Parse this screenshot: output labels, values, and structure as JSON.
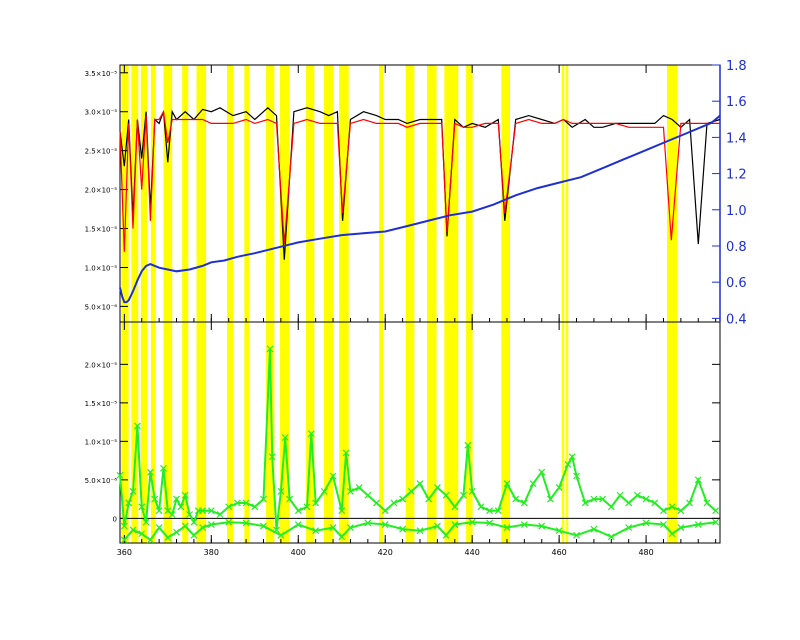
{
  "colors": {
    "background": "#ffffff",
    "band": "#ffff00",
    "observed": "#000000",
    "model": "#ff0000",
    "ratio": "#1f2fd0",
    "residual": "#22ee22",
    "right_axis": "#1f2fd0",
    "axis": "#000000"
  },
  "chart_data": [
    {
      "type": "line",
      "panel": "top",
      "title": "",
      "xlabel": "",
      "ylabel_left": "",
      "ylabel_right": "",
      "xlim": [
        359,
        497
      ],
      "ylim_left": [
        3e-06,
        3.6e-05
      ],
      "ylim_right": [
        0.38,
        1.8
      ],
      "y_ticks_left": [
        {
          "value": 5e-06,
          "label": "5.0×10⁻⁶"
        },
        {
          "value": 1e-05,
          "label": "1.0×10⁻⁵"
        },
        {
          "value": 1.5e-05,
          "label": "1.5×10⁻⁵"
        },
        {
          "value": 2e-05,
          "label": "2.0×10⁻⁵"
        },
        {
          "value": 2.5e-05,
          "label": "2.5×10⁻⁵"
        },
        {
          "value": 3e-05,
          "label": "3.0×10⁻⁵"
        },
        {
          "value": 3.5e-05,
          "label": "3.5×10⁻⁵"
        }
      ],
      "y_ticks_right": [
        {
          "value": 0.4,
          "label": "0.4"
        },
        {
          "value": 0.6,
          "label": "0.6"
        },
        {
          "value": 0.8,
          "label": "0.8"
        },
        {
          "value": 1.0,
          "label": "1.0"
        },
        {
          "value": 1.2,
          "label": "1.2"
        },
        {
          "value": 1.4,
          "label": "1.4"
        },
        {
          "value": 1.6,
          "label": "1.6"
        },
        {
          "value": 1.8,
          "label": "1.8"
        }
      ],
      "highlight_bands": [
        [
          359.3,
          361.0
        ],
        [
          361.6,
          363.2
        ],
        [
          363.8,
          365.2
        ],
        [
          366.1,
          367.2
        ],
        [
          369.0,
          371.0
        ],
        [
          373.3,
          374.7
        ],
        [
          376.6,
          378.8
        ],
        [
          383.6,
          385.0
        ],
        [
          387.6,
          388.7
        ],
        [
          392.6,
          394.5
        ],
        [
          395.8,
          398.0
        ],
        [
          401.8,
          403.7
        ],
        [
          405.9,
          408.1
        ],
        [
          409.4,
          411.6
        ],
        [
          418.6,
          419.6
        ],
        [
          424.7,
          426.7
        ],
        [
          429.6,
          431.8
        ],
        [
          433.6,
          436.8
        ],
        [
          438.6,
          440.1
        ],
        [
          446.7,
          448.7
        ],
        [
          460.6,
          461.2
        ],
        [
          461.6,
          462.1
        ],
        [
          484.8,
          487.2
        ]
      ],
      "series": [
        {
          "key": "observed",
          "x": [
            359,
            360,
            361,
            362,
            363,
            364,
            365,
            366,
            367,
            368,
            369,
            370,
            371,
            372,
            374,
            376,
            378,
            380,
            382,
            385,
            388,
            390,
            393,
            395,
            396.8,
            399,
            402,
            405,
            407,
            409,
            410.2,
            412,
            415,
            418,
            420,
            423,
            425,
            428,
            430,
            433,
            434.2,
            436,
            438,
            440,
            443,
            446,
            447.5,
            450,
            453,
            456,
            459,
            461,
            463,
            466,
            468,
            470,
            473,
            476,
            479,
            482,
            484,
            486,
            488,
            490,
            492,
            494,
            497
          ],
          "y": [
            2.75e-05,
            2.3e-05,
            2.9e-05,
            1.65e-05,
            2.9e-05,
            2.4e-05,
            3e-05,
            1.75e-05,
            2.9e-05,
            2.85e-05,
            3e-05,
            2.35e-05,
            3e-05,
            2.9e-05,
            3e-05,
            2.9e-05,
            3.03e-05,
            3e-05,
            3.05e-05,
            2.95e-05,
            3e-05,
            2.9e-05,
            3.05e-05,
            2.95e-05,
            1.1e-05,
            3e-05,
            3.05e-05,
            3e-05,
            2.95e-05,
            3e-05,
            1.6e-05,
            2.9e-05,
            3e-05,
            2.95e-05,
            2.9e-05,
            2.9e-05,
            2.85e-05,
            2.9e-05,
            2.9e-05,
            2.9e-05,
            1.4e-05,
            2.9e-05,
            2.8e-05,
            2.85e-05,
            2.8e-05,
            2.9e-05,
            1.6e-05,
            2.9e-05,
            2.95e-05,
            2.9e-05,
            2.85e-05,
            2.9e-05,
            2.8e-05,
            2.9e-05,
            2.8e-05,
            2.8e-05,
            2.85e-05,
            2.85e-05,
            2.85e-05,
            2.85e-05,
            2.95e-05,
            2.9e-05,
            2.8e-05,
            2.9e-05,
            1.3e-05,
            2.85e-05,
            2.9e-05
          ]
        },
        {
          "key": "model",
          "x": [
            359,
            360,
            361,
            362,
            363,
            364,
            365,
            366,
            367,
            368,
            369,
            370,
            371,
            372,
            374,
            376,
            378,
            380,
            382,
            385,
            388,
            390,
            393,
            395,
            396.8,
            399,
            402,
            405,
            407,
            409,
            410.2,
            412,
            415,
            418,
            420,
            423,
            425,
            428,
            430,
            433,
            434.2,
            436,
            438,
            440,
            443,
            446,
            447.5,
            450,
            453,
            456,
            459,
            461,
            463,
            466,
            468,
            470,
            473,
            476,
            479,
            482,
            484,
            485.8,
            488,
            490,
            492,
            494,
            497
          ],
          "y": [
            2.75e-05,
            1.2e-05,
            2.85e-05,
            1.5e-05,
            2.9e-05,
            2e-05,
            2.95e-05,
            1.6e-05,
            2.9e-05,
            2.9e-05,
            3e-05,
            2.6e-05,
            2.9e-05,
            2.9e-05,
            2.9e-05,
            2.9e-05,
            2.9e-05,
            2.85e-05,
            2.85e-05,
            2.85e-05,
            2.9e-05,
            2.85e-05,
            2.9e-05,
            2.85e-05,
            1.3e-05,
            2.85e-05,
            2.9e-05,
            2.85e-05,
            2.85e-05,
            2.85e-05,
            1.7e-05,
            2.85e-05,
            2.9e-05,
            2.85e-05,
            2.85e-05,
            2.85e-05,
            2.8e-05,
            2.85e-05,
            2.85e-05,
            2.85e-05,
            1.45e-05,
            2.85e-05,
            2.8e-05,
            2.8e-05,
            2.85e-05,
            2.85e-05,
            1.7e-05,
            2.85e-05,
            2.9e-05,
            2.85e-05,
            2.85e-05,
            2.9e-05,
            2.85e-05,
            2.85e-05,
            2.85e-05,
            2.85e-05,
            2.85e-05,
            2.8e-05,
            2.8e-05,
            2.8e-05,
            2.8e-05,
            1.35e-05,
            2.85e-05,
            2.85e-05,
            2.85e-05,
            2.85e-05,
            2.85e-05
          ]
        },
        {
          "key": "ratio",
          "axis": "right",
          "x": [
            359,
            359.5,
            360,
            360.5,
            361,
            362,
            363,
            364,
            365,
            366,
            367,
            368,
            370,
            372,
            375,
            378,
            380,
            383,
            386,
            390,
            395,
            400,
            405,
            410,
            415,
            420,
            425,
            430,
            435,
            440,
            445,
            450,
            455,
            460,
            465,
            470,
            475,
            480,
            485,
            490,
            495,
            497
          ],
          "y": [
            0.57,
            0.52,
            0.49,
            0.49,
            0.5,
            0.55,
            0.61,
            0.66,
            0.69,
            0.7,
            0.69,
            0.68,
            0.67,
            0.66,
            0.67,
            0.69,
            0.71,
            0.72,
            0.74,
            0.76,
            0.79,
            0.82,
            0.84,
            0.86,
            0.87,
            0.88,
            0.91,
            0.94,
            0.97,
            0.99,
            1.03,
            1.08,
            1.12,
            1.15,
            1.18,
            1.23,
            1.28,
            1.33,
            1.38,
            1.43,
            1.48,
            1.52
          ]
        }
      ]
    },
    {
      "type": "scatter",
      "panel": "bottom",
      "title": "",
      "xlabel": "",
      "ylabel": "",
      "xlim": [
        359,
        497
      ],
      "ylim": [
        -3.2e-06,
        2.55e-05
      ],
      "y_ticks": [
        {
          "value": 0,
          "label": "0"
        },
        {
          "value": 5e-06,
          "label": "5.0×10⁻⁶"
        },
        {
          "value": 1e-05,
          "label": "1.0×10⁻⁵"
        },
        {
          "value": 1.5e-05,
          "label": "1.5×10⁻⁵"
        },
        {
          "value": 2e-05,
          "label": "2.0×10⁻⁵"
        }
      ],
      "x_ticks": [
        {
          "value": 360,
          "label": "360"
        },
        {
          "value": 380,
          "label": "380"
        },
        {
          "value": 400,
          "label": "400"
        },
        {
          "value": 420,
          "label": "420"
        },
        {
          "value": 440,
          "label": "440"
        },
        {
          "value": 460,
          "label": "460"
        },
        {
          "value": 480,
          "label": "480"
        }
      ],
      "series": [
        {
          "key": "residual",
          "x": [
            359,
            360,
            361,
            362,
            363,
            364,
            365,
            366,
            367,
            368,
            369,
            370,
            371,
            372,
            373,
            374,
            375,
            376,
            377,
            378,
            380,
            382,
            384,
            386,
            388,
            390,
            392,
            393.5,
            394,
            395,
            396,
            397,
            398,
            400,
            402,
            403,
            404,
            406,
            408,
            410,
            411,
            412,
            414,
            416,
            418,
            420,
            422,
            424,
            426,
            428,
            430,
            432,
            434,
            436,
            438,
            439,
            440,
            442,
            444,
            446,
            448,
            450,
            452,
            454,
            456,
            458,
            460,
            462,
            463,
            464,
            466,
            468,
            470,
            472,
            474,
            476,
            478,
            480,
            482,
            484,
            486,
            488,
            490,
            492,
            494,
            496
          ],
          "y": [
            5.6e-06,
            -1e-06,
            2e-06,
            3.5e-06,
            1.2e-05,
            1.5e-06,
            -5e-07,
            6e-06,
            2.5e-06,
            1e-06,
            6.5e-06,
            1e-06,
            5e-07,
            2.5e-06,
            1.5e-06,
            3e-06,
            5e-07,
            -5e-07,
            1e-06,
            1e-06,
            1e-06,
            5e-07,
            1.5e-06,
            2e-06,
            2e-06,
            1.5e-06,
            2.5e-06,
            2.2e-05,
            8e-06,
            -1.5e-06,
            3.5e-06,
            1.05e-05,
            2.5e-06,
            1e-06,
            1.5e-06,
            1.1e-05,
            2e-06,
            3.5e-06,
            5.5e-06,
            1e-06,
            8.5e-06,
            3.5e-06,
            4e-06,
            3e-06,
            2e-06,
            1e-06,
            2e-06,
            2.5e-06,
            3.5e-06,
            4.5e-06,
            2.5e-06,
            4e-06,
            3e-06,
            1.5e-06,
            3e-06,
            9.5e-06,
            3.5e-06,
            1.5e-06,
            1e-06,
            1e-06,
            4.5e-06,
            2.5e-06,
            2e-06,
            4.5e-06,
            6e-06,
            2.5e-06,
            4e-06,
            7e-06,
            8e-06,
            5.5e-06,
            2e-06,
            2.5e-06,
            2.5e-06,
            1.5e-06,
            3e-06,
            2e-06,
            3e-06,
            2.5e-06,
            2e-06,
            1e-06,
            1.5e-06,
            1e-06,
            2e-06,
            5e-06,
            2e-06,
            1e-06
          ]
        },
        {
          "key": "residual_negative",
          "x": [
            360,
            362,
            364,
            366,
            368,
            370,
            372,
            374,
            376,
            378,
            380,
            384,
            388,
            392,
            396,
            400,
            404,
            408,
            410,
            412,
            416,
            420,
            424,
            428,
            432,
            434,
            436,
            440,
            444,
            448,
            452,
            456,
            460,
            464,
            468,
            472,
            476,
            480,
            484,
            486,
            488,
            492,
            496
          ],
          "y": [
            -2.8e-06,
            -1.5e-06,
            -2e-06,
            -2.8e-06,
            -1.2e-06,
            -2.5e-06,
            -1.8e-06,
            -1e-06,
            -2.2e-06,
            -1.2e-06,
            -8e-07,
            -5e-07,
            -6e-07,
            -1e-06,
            -2.2e-06,
            -8e-07,
            -1.6e-06,
            -1.2e-06,
            -2.4e-06,
            -1.2e-06,
            -6e-07,
            -8e-07,
            -1.4e-06,
            -1.6e-06,
            -1e-06,
            -2.2e-06,
            -8e-07,
            -5e-07,
            -6e-07,
            -1.2e-06,
            -8e-07,
            -1e-06,
            -1.6e-06,
            -2.2e-06,
            -1.4e-06,
            -2.4e-06,
            -1.2e-06,
            -6e-07,
            -8e-07,
            -2e-06,
            -1.2e-06,
            -8e-07,
            -5e-07
          ]
        }
      ]
    }
  ]
}
